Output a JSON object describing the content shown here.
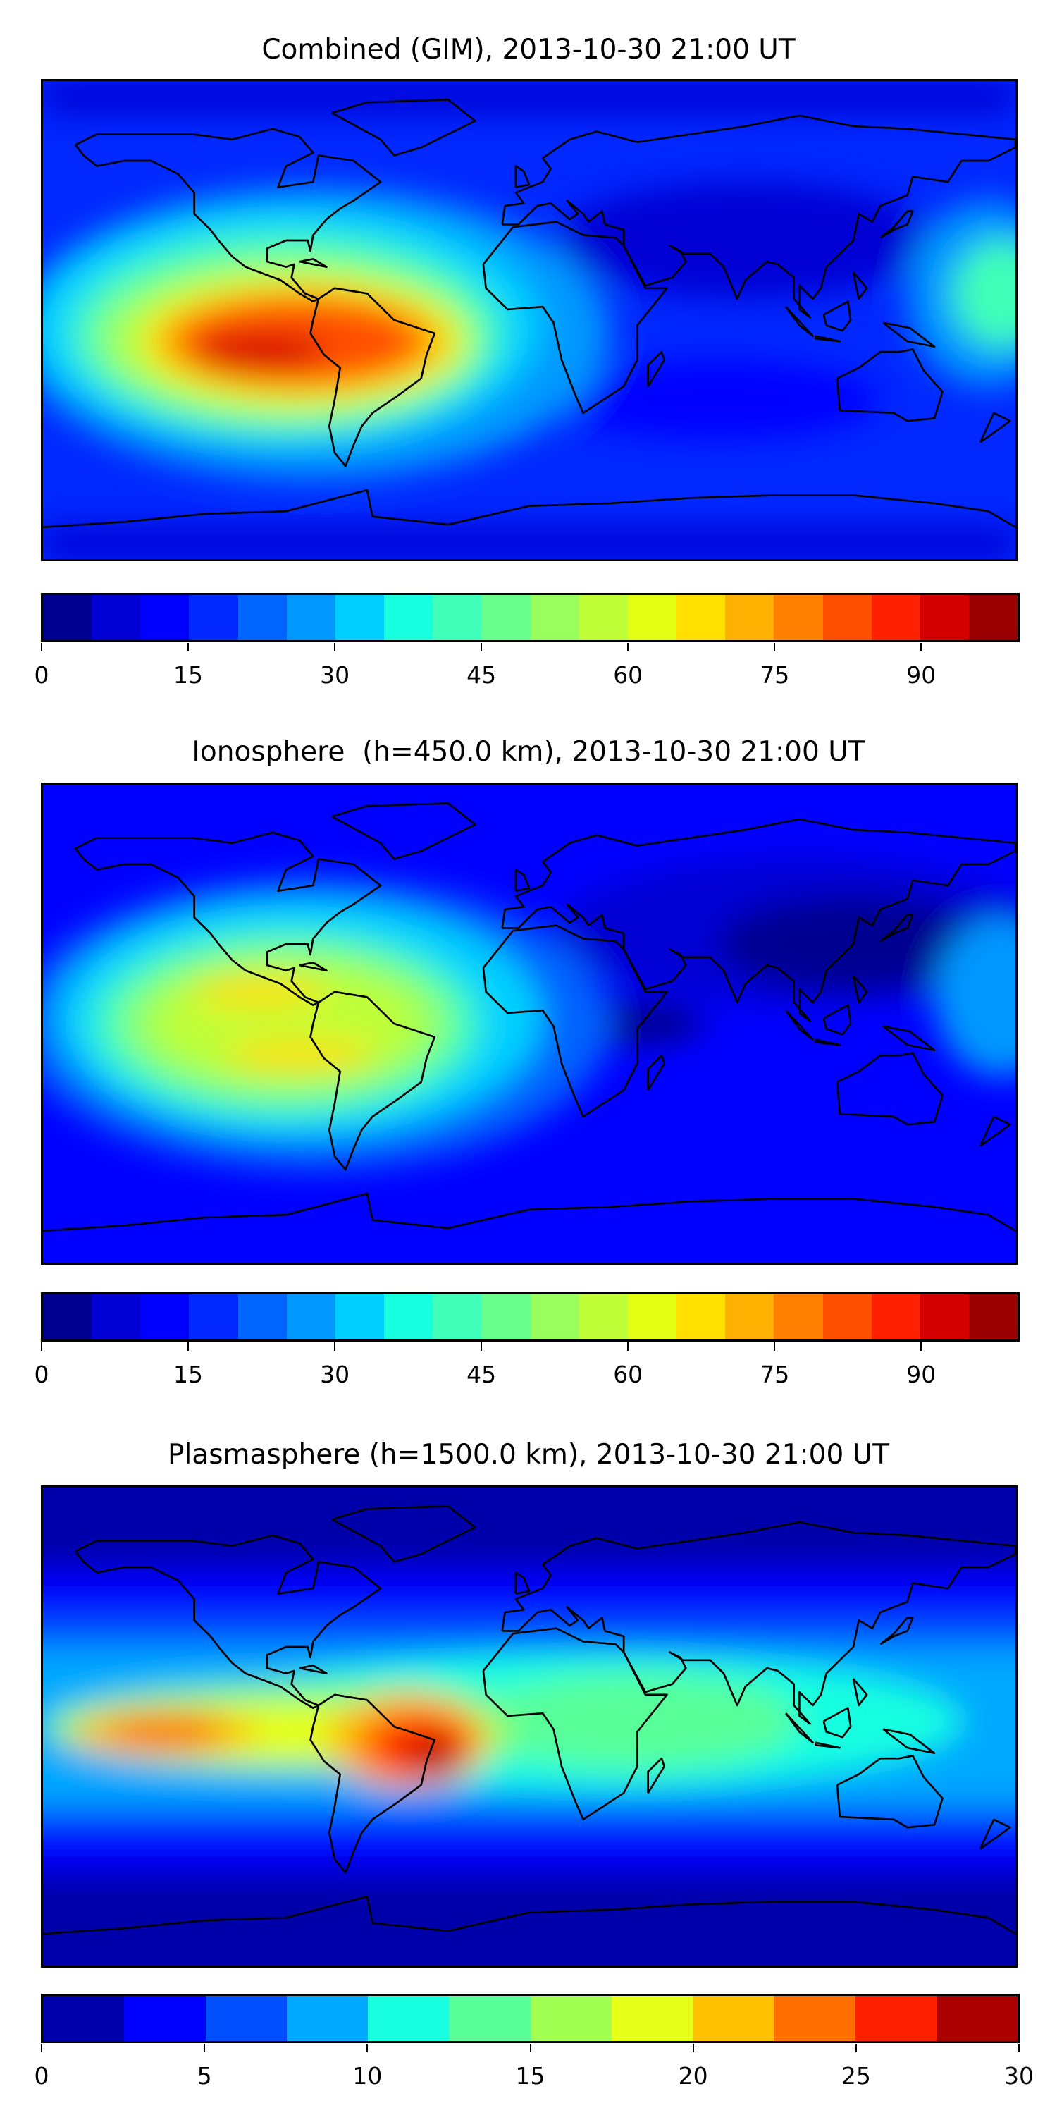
{
  "panels": [
    {
      "title": "Combined (GIM), 2013-10-30 21:00 UT",
      "colorbar": {
        "min": 0,
        "max": 100,
        "step": 5,
        "ticks": [
          "0",
          "15",
          "30",
          "45",
          "60",
          "75",
          "90"
        ],
        "tick_values": [
          0,
          15,
          30,
          45,
          60,
          75,
          90
        ],
        "colors": [
          "#000090",
          "#0000d4",
          "#0000ff",
          "#0028ff",
          "#0064ff",
          "#0098ff",
          "#00d0ff",
          "#18ffe0",
          "#40ffb8",
          "#68ff8c",
          "#98ff5c",
          "#c0ff38",
          "#e4ff14",
          "#ffe000",
          "#ffb000",
          "#ff8000",
          "#ff5000",
          "#ff2000",
          "#d40000",
          "#9a0000"
        ]
      }
    },
    {
      "title": "Ionosphere  (h=450.0 km), 2013-10-30 21:00 UT",
      "colorbar": {
        "min": 0,
        "max": 100,
        "step": 5,
        "ticks": [
          "0",
          "15",
          "30",
          "45",
          "60",
          "75",
          "90"
        ],
        "tick_values": [
          0,
          15,
          30,
          45,
          60,
          75,
          90
        ],
        "colors": [
          "#000090",
          "#0000d4",
          "#0000ff",
          "#0028ff",
          "#0064ff",
          "#0098ff",
          "#00d0ff",
          "#18ffe0",
          "#40ffb8",
          "#68ff8c",
          "#98ff5c",
          "#c0ff38",
          "#e4ff14",
          "#ffe000",
          "#ffb000",
          "#ff8000",
          "#ff5000",
          "#ff2000",
          "#d40000",
          "#9a0000"
        ]
      }
    },
    {
      "title": "Plasmasphere (h=1500.0 km), 2013-10-30 21:00 UT",
      "colorbar": {
        "min": 0,
        "max": 30,
        "step": 2.5,
        "ticks": [
          "0",
          "5",
          "10",
          "15",
          "20",
          "25",
          "30"
        ],
        "tick_values": [
          0,
          5,
          10,
          15,
          20,
          25,
          30
        ],
        "colors": [
          "#0000aa",
          "#0000ff",
          "#0050ff",
          "#00a8ff",
          "#18ffe0",
          "#58ff98",
          "#a0ff50",
          "#e4ff18",
          "#ffc000",
          "#ff7000",
          "#ff2000",
          "#aa0000"
        ]
      }
    }
  ],
  "chart_data": [
    {
      "type": "heatmap",
      "title": "Combined (GIM), 2013-10-30 21:00 UT",
      "value_range": [
        0,
        100
      ],
      "colorbar_ticks": [
        0,
        15,
        30,
        45,
        60,
        75,
        90
      ],
      "features": "maximum ~85-90 over tropical eastern Pacific / northern South America; minimum ~5-15 over Asia and high latitudes"
    },
    {
      "type": "heatmap",
      "title": "Ionosphere  (h=450.0 km), 2013-10-30 21:00 UT",
      "value_range": [
        0,
        100
      ],
      "colorbar_ticks": [
        0,
        15,
        30,
        45,
        60,
        75,
        90
      ],
      "features": "maximum ~65-70 over Central/South America; minimum ~0-5 over Asia"
    },
    {
      "type": "heatmap",
      "title": "Plasmasphere (h=1500.0 km), 2013-10-30 21:00 UT",
      "value_range": [
        0,
        30
      ],
      "colorbar_ticks": [
        0,
        5,
        10,
        15,
        20,
        25,
        30
      ],
      "features": "maximum ~27.5-30 over Brazil; secondary ~22.5-25 over eastern Pacific; minimum 0-2.5 at high latitudes"
    }
  ]
}
